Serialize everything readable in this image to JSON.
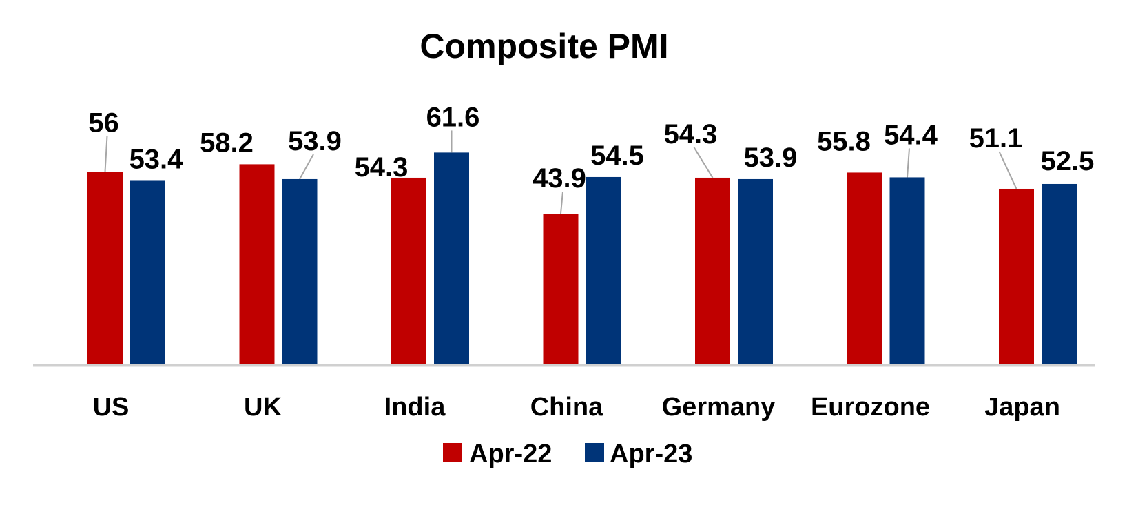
{
  "chart_data": {
    "type": "bar",
    "title": "Composite PMI",
    "xlabel": "",
    "ylabel": "",
    "categories": [
      "US",
      "UK",
      "India",
      "China",
      "Germany",
      "Eurozone",
      "Japan"
    ],
    "series": [
      {
        "name": "Apr-22",
        "color": "#c00000",
        "values": [
          56,
          58.2,
          54.3,
          43.9,
          54.3,
          55.8,
          51.1
        ]
      },
      {
        "name": "Apr-23",
        "color": "#003478",
        "values": [
          53.4,
          53.9,
          61.6,
          54.5,
          53.9,
          54.4,
          52.5
        ]
      }
    ],
    "ylim": [
      0,
      100
    ],
    "grid": false,
    "legend": "bottom"
  }
}
